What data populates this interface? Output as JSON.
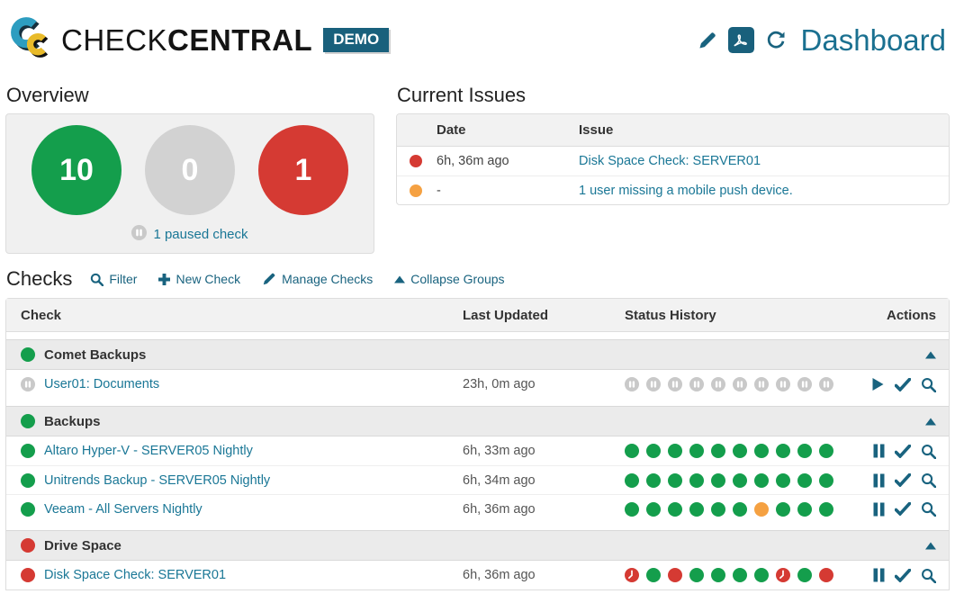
{
  "header": {
    "brand": {
      "name_part1": "CHECK",
      "name_part2": "CENTRAL",
      "badge": "DEMO"
    },
    "page_title": "Dashboard",
    "icons": [
      "edit-pencil",
      "export-pdf",
      "refresh"
    ]
  },
  "overview": {
    "title": "Overview",
    "counters": [
      {
        "value": "10",
        "status": "success"
      },
      {
        "value": "0",
        "status": "neutral"
      },
      {
        "value": "1",
        "status": "failure"
      }
    ],
    "paused_note": "1 paused check"
  },
  "current_issues": {
    "title": "Current Issues",
    "columns": [
      "Date",
      "Issue"
    ],
    "rows": [
      {
        "status": "failure",
        "date": "6h, 36m ago",
        "issue": "Disk Space Check: SERVER01"
      },
      {
        "status": "warning",
        "date": "-",
        "issue": "1 user missing a mobile push device."
      }
    ]
  },
  "checks": {
    "title": "Checks",
    "toolbar": [
      {
        "icon": "search",
        "label": "Filter"
      },
      {
        "icon": "plus",
        "label": "New Check"
      },
      {
        "icon": "pencil",
        "label": "Manage Checks"
      },
      {
        "icon": "collapse",
        "label": "Collapse Groups"
      }
    ],
    "columns": [
      "Check",
      "Last Updated",
      "Status History",
      "Actions"
    ],
    "groups": [
      {
        "name": "Comet Backups",
        "status": "success",
        "checks": [
          {
            "name": "User01: Documents",
            "status": "paused",
            "last_updated": "23h, 0m ago",
            "history": [
              "paused",
              "paused",
              "paused",
              "paused",
              "paused",
              "paused",
              "paused",
              "paused",
              "paused",
              "paused"
            ],
            "actions": [
              "resume",
              "acknowledge",
              "view-activity"
            ]
          }
        ]
      },
      {
        "name": "Backups",
        "status": "success",
        "checks": [
          {
            "name": "Altaro Hyper-V - SERVER05 Nightly",
            "status": "success",
            "last_updated": "6h, 33m ago",
            "history": [
              "ok",
              "ok",
              "ok",
              "ok",
              "ok",
              "ok",
              "ok",
              "ok",
              "ok",
              "ok"
            ],
            "actions": [
              "pause",
              "acknowledge",
              "view-activity"
            ]
          },
          {
            "name": "Unitrends Backup - SERVER05 Nightly",
            "status": "success",
            "last_updated": "6h, 34m ago",
            "history": [
              "ok",
              "ok",
              "ok",
              "ok",
              "ok",
              "ok",
              "ok",
              "ok",
              "ok",
              "ok"
            ],
            "actions": [
              "pause",
              "acknowledge",
              "view-activity"
            ]
          },
          {
            "name": "Veeam - All Servers Nightly",
            "status": "success",
            "last_updated": "6h, 36m ago",
            "history": [
              "ok",
              "ok",
              "ok",
              "ok",
              "ok",
              "ok",
              "warn",
              "ok",
              "ok",
              "ok"
            ],
            "actions": [
              "pause",
              "acknowledge",
              "view-activity"
            ]
          }
        ]
      },
      {
        "name": "Drive Space",
        "status": "failure",
        "checks": [
          {
            "name": "Disk Space Check: SERVER01",
            "status": "failure",
            "last_updated": "6h, 36m ago",
            "history": [
              "late",
              "ok",
              "fail",
              "ok",
              "ok",
              "ok",
              "ok",
              "late",
              "ok",
              "fail"
            ],
            "actions": [
              "pause",
              "acknowledge",
              "view-activity"
            ]
          }
        ]
      }
    ]
  },
  "colors": {
    "success": "#149e4c",
    "failure": "#d53a33",
    "warning": "#f5a142",
    "paused": "#c9c9c9",
    "neutral": "#d2d2d2",
    "link": "#1a7796",
    "icon": "#19637f",
    "badge": "#19607c",
    "title": "#1a7090"
  }
}
